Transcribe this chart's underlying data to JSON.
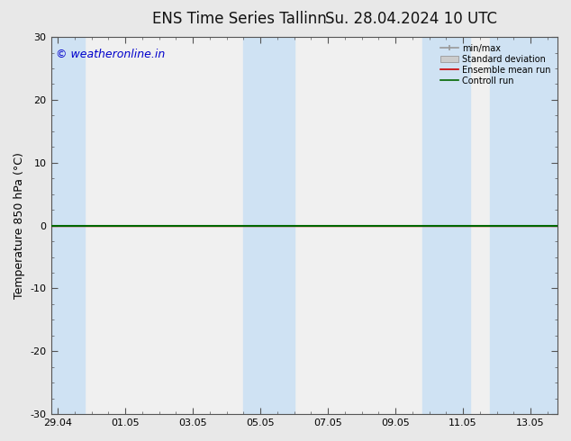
{
  "title_left": "ENS Time Series Tallinn",
  "title_right": "Su. 28.04.2024 10 UTC",
  "ylabel": "Temperature 850 hPa (°C)",
  "watermark": "© weatheronline.in",
  "ylim": [
    -30,
    30
  ],
  "yticks": [
    -30,
    -20,
    -10,
    0,
    10,
    20,
    30
  ],
  "x_tick_labels": [
    "29.04",
    "01.05",
    "03.05",
    "05.05",
    "07.05",
    "09.05",
    "11.05",
    "13.05"
  ],
  "x_tick_positions": [
    0,
    2,
    4,
    6,
    8,
    10,
    12,
    14
  ],
  "x_lim": [
    -0.2,
    14.8
  ],
  "shaded_bands": [
    {
      "x_start": -0.2,
      "x_end": 0.8,
      "color": "#cfe2f3"
    },
    {
      "x_start": 5.5,
      "x_end": 7.0,
      "color": "#cfe2f3"
    },
    {
      "x_start": 10.8,
      "x_end": 12.2,
      "color": "#cfe2f3"
    },
    {
      "x_start": 12.8,
      "x_end": 14.8,
      "color": "#cfe2f3"
    }
  ],
  "control_run_y": 0.0,
  "ensemble_mean_y": 0.0,
  "bg_color": "#e8e8e8",
  "plot_bg_color": "#f0f0f0",
  "spine_color": "#555555",
  "min_max_color": "#999999",
  "std_dev_color": "#cccccc",
  "ensemble_mean_color": "#cc0000",
  "control_run_color": "#006600",
  "watermark_color": "#0000cc",
  "legend_labels": [
    "min/max",
    "Standard deviation",
    "Ensemble mean run",
    "Controll run"
  ],
  "title_fontsize": 12,
  "axis_label_fontsize": 9,
  "tick_fontsize": 8,
  "watermark_fontsize": 9
}
